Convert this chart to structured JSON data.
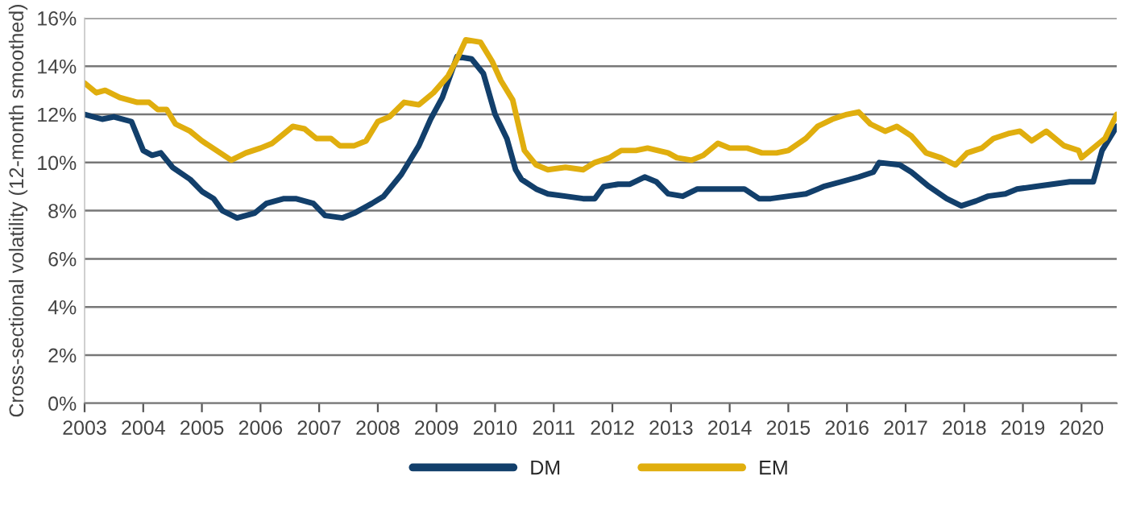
{
  "chart_data": {
    "type": "line",
    "ylabel": "Cross-sectional volatility (12-month smoothed)",
    "xlim": [
      2003,
      2020.6
    ],
    "xticks": [
      {
        "value": 2003,
        "label": "2003"
      },
      {
        "value": 2004,
        "label": "2004"
      },
      {
        "value": 2005,
        "label": "2005"
      },
      {
        "value": 2006,
        "label": "2006"
      },
      {
        "value": 2007,
        "label": "2007"
      },
      {
        "value": 2008,
        "label": "2008"
      },
      {
        "value": 2009,
        "label": "2009"
      },
      {
        "value": 2010,
        "label": "2010"
      },
      {
        "value": 2011,
        "label": "2011"
      },
      {
        "value": 2012,
        "label": "2012"
      },
      {
        "value": 2013,
        "label": "2013"
      },
      {
        "value": 2014,
        "label": "2014"
      },
      {
        "value": 2015,
        "label": "2015"
      },
      {
        "value": 2016,
        "label": "2016"
      },
      {
        "value": 2017,
        "label": "2017"
      },
      {
        "value": 2018,
        "label": "2018"
      },
      {
        "value": 2019,
        "label": "2019"
      },
      {
        "value": 2020,
        "label": "2020"
      }
    ],
    "ylim": [
      0,
      16
    ],
    "yticks": [
      {
        "value": 0,
        "label": "0%"
      },
      {
        "value": 2,
        "label": "2%"
      },
      {
        "value": 4,
        "label": "4%"
      },
      {
        "value": 6,
        "label": "6%"
      },
      {
        "value": 8,
        "label": "8%"
      },
      {
        "value": 10,
        "label": "10%"
      },
      {
        "value": 12,
        "label": "12%"
      },
      {
        "value": 14,
        "label": "14%"
      },
      {
        "value": 16,
        "label": "16%"
      }
    ],
    "grid": "y",
    "legend": "bottom",
    "line_style": "solid",
    "marker": "none",
    "series": [
      {
        "name": "DM",
        "color": "#123f6b",
        "x": [
          2003.0,
          2003.3,
          2003.5,
          2003.8,
          2004.0,
          2004.15,
          2004.3,
          2004.5,
          2004.8,
          2005.0,
          2005.2,
          2005.35,
          2005.6,
          2005.9,
          2006.1,
          2006.4,
          2006.6,
          2006.9,
          2007.1,
          2007.4,
          2007.6,
          2007.9,
          2008.1,
          2008.4,
          2008.7,
          2008.9,
          2009.1,
          2009.35,
          2009.6,
          2009.8,
          2010.0,
          2010.2,
          2010.35,
          2010.45,
          2010.7,
          2010.9,
          2011.2,
          2011.5,
          2011.7,
          2011.85,
          2012.1,
          2012.3,
          2012.55,
          2012.75,
          2012.95,
          2013.2,
          2013.45,
          2013.7,
          2014.0,
          2014.25,
          2014.5,
          2014.7,
          2015.0,
          2015.3,
          2015.6,
          2015.9,
          2016.2,
          2016.45,
          2016.55,
          2016.9,
          2017.1,
          2017.4,
          2017.7,
          2017.95,
          2018.2,
          2018.4,
          2018.7,
          2018.9,
          2019.2,
          2019.5,
          2019.8,
          2020.0,
          2020.2,
          2020.35,
          2020.6
        ],
        "values": [
          12.0,
          11.8,
          11.9,
          11.7,
          10.5,
          10.3,
          10.4,
          9.8,
          9.3,
          8.8,
          8.5,
          8.0,
          7.7,
          7.9,
          8.3,
          8.5,
          8.5,
          8.3,
          7.8,
          7.7,
          7.9,
          8.3,
          8.6,
          9.5,
          10.7,
          11.8,
          12.7,
          14.4,
          14.3,
          13.7,
          12.0,
          11.0,
          9.7,
          9.3,
          8.9,
          8.7,
          8.6,
          8.5,
          8.5,
          9.0,
          9.1,
          9.1,
          9.4,
          9.2,
          8.7,
          8.6,
          8.9,
          8.9,
          8.9,
          8.9,
          8.5,
          8.5,
          8.6,
          8.7,
          9.0,
          9.2,
          9.4,
          9.6,
          10.0,
          9.9,
          9.6,
          9.0,
          8.5,
          8.2,
          8.4,
          8.6,
          8.7,
          8.9,
          9.0,
          9.1,
          9.2,
          9.2,
          9.2,
          10.5,
          11.5
        ]
      },
      {
        "name": "EM",
        "color": "#e0ae0e",
        "x": [
          2003.0,
          2003.2,
          2003.35,
          2003.6,
          2003.9,
          2004.1,
          2004.25,
          2004.4,
          2004.55,
          2004.8,
          2005.0,
          2005.25,
          2005.5,
          2005.75,
          2006.0,
          2006.2,
          2006.4,
          2006.55,
          2006.75,
          2006.95,
          2007.2,
          2007.35,
          2007.6,
          2007.8,
          2008.0,
          2008.2,
          2008.45,
          2008.7,
          2008.95,
          2009.2,
          2009.35,
          2009.5,
          2009.75,
          2009.95,
          2010.1,
          2010.3,
          2010.5,
          2010.7,
          2010.9,
          2011.2,
          2011.5,
          2011.7,
          2011.95,
          2012.15,
          2012.4,
          2012.6,
          2012.95,
          2013.1,
          2013.35,
          2013.55,
          2013.8,
          2014.0,
          2014.3,
          2014.55,
          2014.8,
          2015.0,
          2015.3,
          2015.5,
          2015.75,
          2016.0,
          2016.2,
          2016.4,
          2016.65,
          2016.85,
          2017.1,
          2017.35,
          2017.6,
          2017.85,
          2018.05,
          2018.3,
          2018.5,
          2018.75,
          2018.95,
          2019.15,
          2019.4,
          2019.7,
          2019.95,
          2020.0,
          2020.2,
          2020.4,
          2020.6
        ],
        "values": [
          13.3,
          12.9,
          13.0,
          12.7,
          12.5,
          12.5,
          12.2,
          12.2,
          11.6,
          11.3,
          10.9,
          10.5,
          10.1,
          10.4,
          10.6,
          10.8,
          11.2,
          11.5,
          11.4,
          11.0,
          11.0,
          10.7,
          10.7,
          10.9,
          11.7,
          11.9,
          12.5,
          12.4,
          12.9,
          13.6,
          14.3,
          15.1,
          15.0,
          14.2,
          13.4,
          12.6,
          10.5,
          9.9,
          9.7,
          9.8,
          9.7,
          10.0,
          10.2,
          10.5,
          10.5,
          10.6,
          10.4,
          10.2,
          10.1,
          10.3,
          10.8,
          10.6,
          10.6,
          10.4,
          10.4,
          10.5,
          11.0,
          11.5,
          11.8,
          12.0,
          12.1,
          11.6,
          11.3,
          11.5,
          11.1,
          10.4,
          10.2,
          9.9,
          10.4,
          10.6,
          11.0,
          11.2,
          11.3,
          10.9,
          11.3,
          10.7,
          10.5,
          10.2,
          10.6,
          11.0,
          12.0
        ]
      }
    ]
  }
}
